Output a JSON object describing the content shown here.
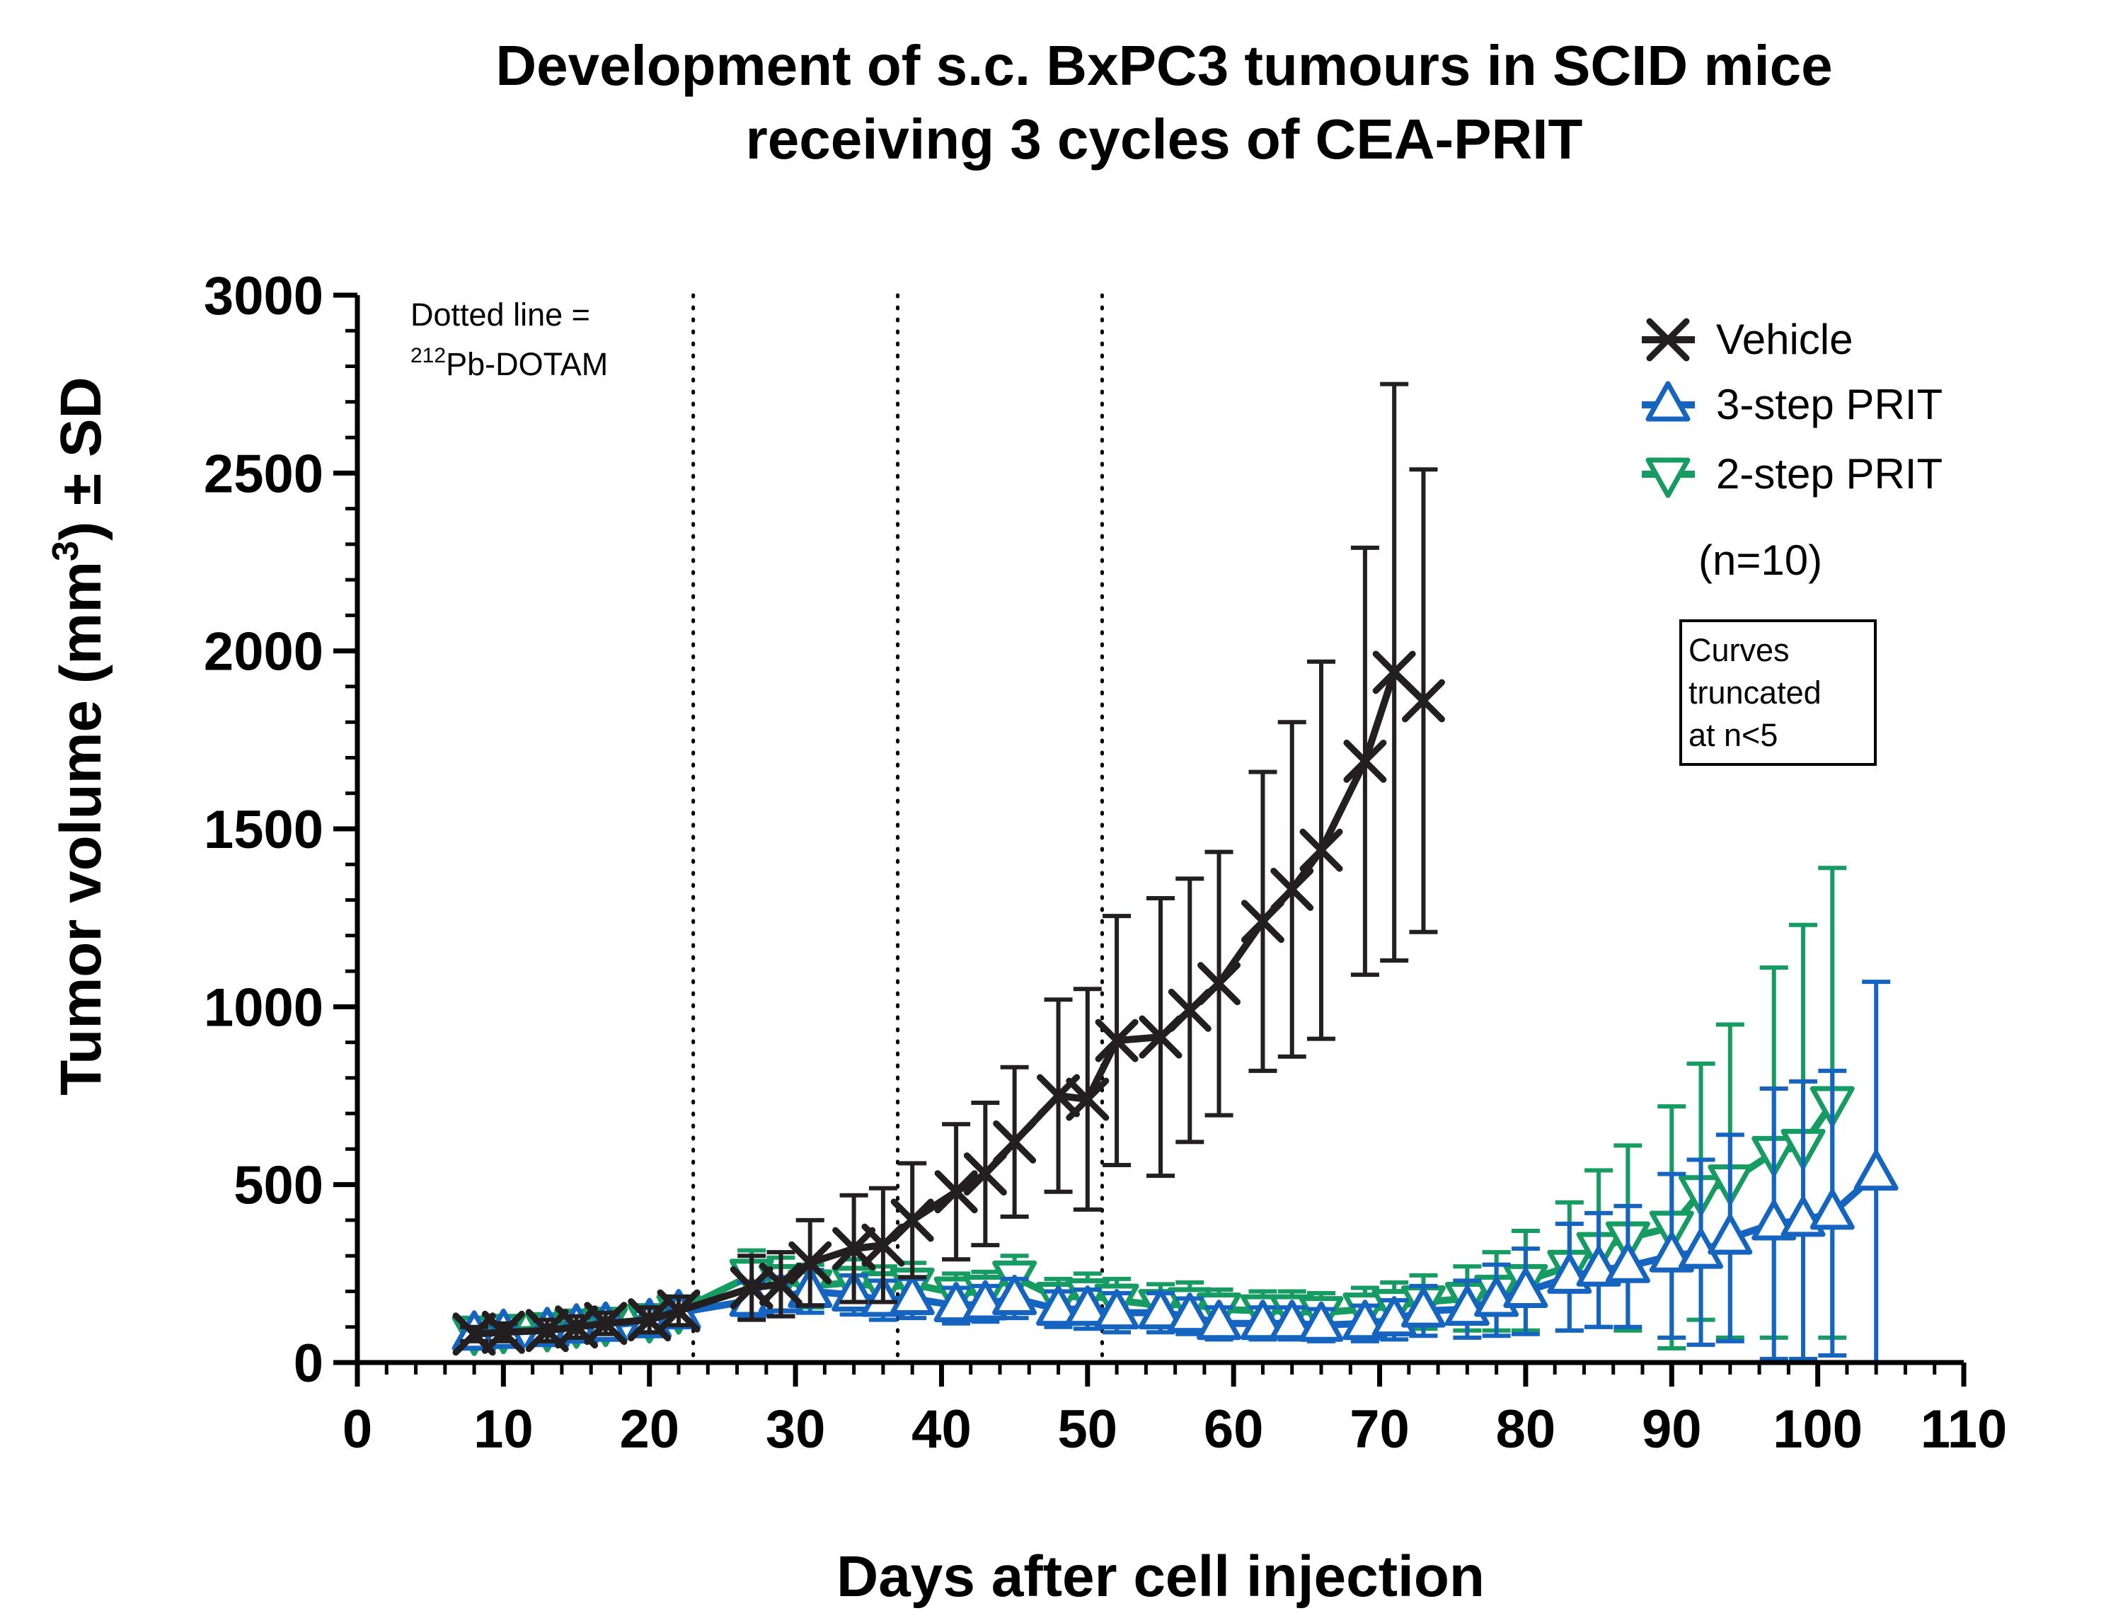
{
  "chart_data": {
    "type": "line",
    "title": [
      "Development of s.c. BxPC3 tumours in SCID mice",
      "receiving 3 cycles of CEA-PRIT"
    ],
    "xlabel": "Days after cell injection",
    "ylabel": {
      "pre": "Tumor volume (mm",
      "sup": "3",
      "post": ") ± SD"
    },
    "xlim": [
      0,
      110
    ],
    "ylim": [
      0,
      3000
    ],
    "xticks": [
      0,
      10,
      20,
      30,
      40,
      50,
      60,
      70,
      80,
      90,
      100,
      110
    ],
    "yticks": [
      0,
      500,
      1000,
      1500,
      2000,
      2500,
      3000
    ],
    "dotted_lines_x": [
      23,
      37,
      51
    ],
    "dotted_line_note": {
      "line1": "Dotted line =",
      "sup": "212",
      "line2": "Pb-DOTAM"
    },
    "legend_n": "(n=10)",
    "truncation_note": [
      "Curves",
      "truncated",
      "at n<5"
    ],
    "series": [
      {
        "name": "Vehicle",
        "color": "#231f20",
        "marker": "x",
        "x": [
          8,
          10,
          13,
          15,
          17,
          20,
          22,
          27,
          29,
          31,
          34,
          36,
          38,
          41,
          43,
          45,
          48,
          50,
          52,
          55,
          57,
          59,
          62,
          64,
          66,
          69,
          71,
          73
        ],
        "y": [
          80,
          85,
          90,
          100,
          110,
          120,
          145,
          210,
          220,
          280,
          320,
          330,
          400,
          480,
          530,
          620,
          750,
          740,
          905,
          915,
          990,
          1065,
          1240,
          1330,
          1440,
          1690,
          1940,
          1860
        ],
        "sd": [
          20,
          25,
          30,
          30,
          30,
          35,
          40,
          90,
          90,
          120,
          150,
          160,
          160,
          190,
          200,
          210,
          270,
          310,
          350,
          390,
          370,
          370,
          420,
          470,
          530,
          600,
          810,
          650
        ]
      },
      {
        "name": "3-step PRIT",
        "color": "#1565c0",
        "marker": "triangle-up",
        "x": [
          8,
          10,
          13,
          15,
          17,
          20,
          22,
          27,
          29,
          31,
          34,
          36,
          38,
          41,
          43,
          45,
          48,
          50,
          52,
          55,
          57,
          59,
          62,
          64,
          66,
          69,
          71,
          73,
          76,
          78,
          80,
          83,
          85,
          87,
          90,
          92,
          94,
          97,
          99,
          101,
          104
        ],
        "y": [
          80,
          85,
          90,
          100,
          105,
          115,
          140,
          175,
          185,
          200,
          190,
          175,
          180,
          160,
          165,
          180,
          150,
          150,
          140,
          140,
          130,
          110,
          110,
          110,
          105,
          110,
          120,
          145,
          150,
          175,
          200,
          240,
          260,
          270,
          300,
          310,
          350,
          390,
          400,
          420,
          530
        ],
        "sd": [
          20,
          20,
          25,
          25,
          25,
          30,
          30,
          50,
          55,
          60,
          55,
          55,
          55,
          50,
          50,
          55,
          50,
          55,
          55,
          55,
          50,
          45,
          45,
          45,
          45,
          50,
          55,
          70,
          80,
          100,
          120,
          150,
          160,
          170,
          230,
          260,
          290,
          380,
          390,
          400,
          540
        ]
      },
      {
        "name": "2-step PRIT",
        "color": "#169b62",
        "marker": "triangle-down",
        "x": [
          8,
          10,
          13,
          15,
          17,
          20,
          22,
          27,
          29,
          31,
          34,
          36,
          38,
          41,
          43,
          45,
          48,
          50,
          52,
          55,
          57,
          59,
          62,
          64,
          66,
          69,
          71,
          73,
          76,
          78,
          80,
          83,
          85,
          87,
          90,
          92,
          94,
          97,
          99,
          101
        ],
        "y": [
          85,
          90,
          95,
          105,
          110,
          120,
          145,
          245,
          230,
          215,
          225,
          210,
          220,
          195,
          200,
          240,
          180,
          190,
          175,
          160,
          165,
          150,
          145,
          145,
          140,
          150,
          160,
          170,
          180,
          200,
          230,
          270,
          320,
          350,
          380,
          480,
          510,
          590,
          610,
          730
        ],
        "sd": [
          20,
          20,
          25,
          25,
          25,
          30,
          35,
          70,
          65,
          60,
          65,
          60,
          60,
          55,
          55,
          60,
          55,
          60,
          60,
          60,
          60,
          55,
          55,
          55,
          55,
          60,
          65,
          75,
          90,
          110,
          140,
          180,
          220,
          260,
          340,
          360,
          440,
          520,
          620,
          660
        ]
      }
    ]
  }
}
